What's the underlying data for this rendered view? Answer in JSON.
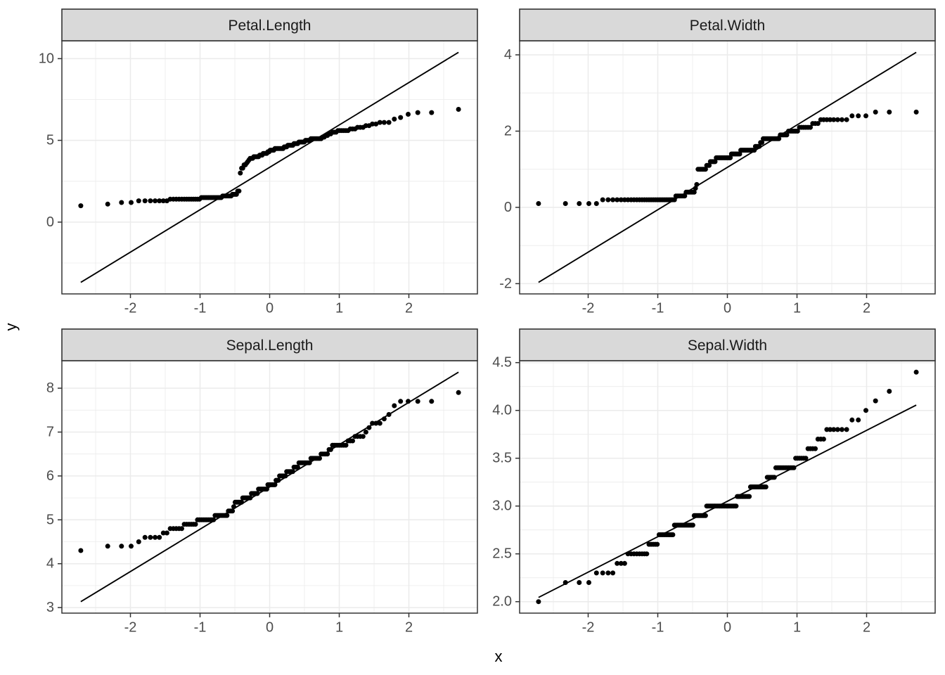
{
  "figure": {
    "title": "",
    "xlabel": "x",
    "ylabel": "y",
    "facet_labels": [
      "Petal.Length",
      "Petal.Width",
      "Sepal.Length",
      "Sepal.Width"
    ]
  },
  "style": {
    "background": "#ffffff",
    "panel_background": "#ffffff",
    "panel_border": "#333333",
    "grid_color": "#ebebeb",
    "strip_background": "#d9d9d9",
    "strip_text_color": "#1a1a1a",
    "axis_text_color": "#4d4d4d",
    "axis_title_color": "#000000",
    "tick_color": "#333333",
    "point_color": "#000000",
    "qq_line_color": "#000000"
  },
  "chart_data": {
    "type": "scatter",
    "subtype": "qq-plot",
    "title": "",
    "xlabel": "x",
    "ylabel": "y",
    "grid": "on",
    "legend": "none",
    "facet_layout": "2x2",
    "n_per_facet": 150,
    "x_definition": "theoretical standard-normal quantiles qnorm((i-0.5)/150), i=1..150, range -2.7132..2.7132",
    "x_range": [
      -2.9845,
      2.9845
    ],
    "x_ticks": [
      -2,
      -1,
      0,
      1,
      2
    ],
    "x_tick_labels": [
      "-2",
      "-1",
      "0",
      "1",
      "2"
    ],
    "x_minor": [
      -2.5,
      -1.5,
      -0.5,
      0.5,
      1.5,
      2.5
    ],
    "facets": [
      {
        "label": "Petal.Length",
        "row": 0,
        "col": 0,
        "n": 150,
        "y_range": [
          -4.394,
          11.094
        ],
        "y_ticks": [
          0,
          5,
          10
        ],
        "y_tick_labels": [
          "0",
          "5",
          "10"
        ],
        "y_minor": [
          -2.5,
          2.5,
          7.5
        ],
        "qq_line": {
          "x1": -2.7132,
          "y1": -3.69,
          "x2": 2.7132,
          "y2": 10.39,
          "slope": 2.5947,
          "intercept": 3.35
        },
        "sample_sorted_value_counts": [
          [
            1.0,
            1
          ],
          [
            1.1,
            1
          ],
          [
            1.2,
            2
          ],
          [
            1.3,
            7
          ],
          [
            1.4,
            13
          ],
          [
            1.5,
            13
          ],
          [
            1.6,
            7
          ],
          [
            1.7,
            4
          ],
          [
            1.9,
            2
          ],
          [
            3.0,
            1
          ],
          [
            3.3,
            2
          ],
          [
            3.5,
            2
          ],
          [
            3.6,
            1
          ],
          [
            3.7,
            1
          ],
          [
            3.8,
            1
          ],
          [
            3.9,
            3
          ],
          [
            4.0,
            5
          ],
          [
            4.1,
            3
          ],
          [
            4.2,
            4
          ],
          [
            4.3,
            2
          ],
          [
            4.4,
            4
          ],
          [
            4.5,
            8
          ],
          [
            4.6,
            3
          ],
          [
            4.7,
            5
          ],
          [
            4.8,
            4
          ],
          [
            4.9,
            5
          ],
          [
            5.0,
            4
          ],
          [
            5.1,
            8
          ],
          [
            5.2,
            2
          ],
          [
            5.3,
            2
          ],
          [
            5.4,
            2
          ],
          [
            5.5,
            3
          ],
          [
            5.6,
            6
          ],
          [
            5.7,
            3
          ],
          [
            5.8,
            3
          ],
          [
            5.9,
            2
          ],
          [
            6.0,
            2
          ],
          [
            6.1,
            3
          ],
          [
            6.3,
            1
          ],
          [
            6.4,
            1
          ],
          [
            6.6,
            1
          ],
          [
            6.7,
            2
          ],
          [
            6.9,
            1
          ]
        ]
      },
      {
        "label": "Petal.Width",
        "row": 0,
        "col": 1,
        "n": 150,
        "y_range": [
          -2.269,
          4.369
        ],
        "y_ticks": [
          -2,
          0,
          2,
          4
        ],
        "y_tick_labels": [
          "-2",
          "0",
          "2",
          "4"
        ],
        "y_minor": [
          -1,
          1,
          3
        ],
        "qq_line": {
          "x1": -2.7132,
          "y1": -1.967,
          "x2": 2.7132,
          "y2": 4.067,
          "slope": 1.112,
          "intercept": 1.05
        },
        "sample_sorted_value_counts": [
          [
            0.1,
            5
          ],
          [
            0.2,
            29
          ],
          [
            0.3,
            7
          ],
          [
            0.4,
            7
          ],
          [
            0.5,
            1
          ],
          [
            0.6,
            1
          ],
          [
            1.0,
            7
          ],
          [
            1.1,
            3
          ],
          [
            1.2,
            5
          ],
          [
            1.3,
            13
          ],
          [
            1.4,
            8
          ],
          [
            1.5,
            12
          ],
          [
            1.6,
            4
          ],
          [
            1.7,
            2
          ],
          [
            1.8,
            12
          ],
          [
            1.9,
            5
          ],
          [
            2.0,
            6
          ],
          [
            2.1,
            6
          ],
          [
            2.2,
            3
          ],
          [
            2.3,
            8
          ],
          [
            2.4,
            3
          ],
          [
            2.5,
            3
          ]
        ]
      },
      {
        "label": "Sepal.Length",
        "row": 1,
        "col": 0,
        "n": 150,
        "y_range": [
          2.874,
          8.626
        ],
        "y_ticks": [
          3,
          4,
          5,
          6,
          7,
          8
        ],
        "y_tick_labels": [
          "3",
          "4",
          "5",
          "6",
          "7",
          "8"
        ],
        "y_minor": [
          3.5,
          4.5,
          5.5,
          6.5,
          7.5
        ],
        "qq_line": {
          "x1": -2.7132,
          "y1": 3.135,
          "x2": 2.7132,
          "y2": 8.365,
          "slope": 0.9637,
          "intercept": 5.75
        },
        "sample_sorted_value_counts": [
          [
            4.3,
            1
          ],
          [
            4.4,
            3
          ],
          [
            4.5,
            1
          ],
          [
            4.6,
            4
          ],
          [
            4.7,
            2
          ],
          [
            4.8,
            5
          ],
          [
            4.9,
            6
          ],
          [
            5.0,
            10
          ],
          [
            5.1,
            9
          ],
          [
            5.2,
            4
          ],
          [
            5.3,
            1
          ],
          [
            5.4,
            6
          ],
          [
            5.5,
            7
          ],
          [
            5.6,
            6
          ],
          [
            5.7,
            8
          ],
          [
            5.8,
            7
          ],
          [
            5.9,
            3
          ],
          [
            6.0,
            6
          ],
          [
            6.1,
            6
          ],
          [
            6.2,
            4
          ],
          [
            6.3,
            9
          ],
          [
            6.4,
            7
          ],
          [
            6.5,
            5
          ],
          [
            6.6,
            2
          ],
          [
            6.7,
            8
          ],
          [
            6.8,
            3
          ],
          [
            6.9,
            4
          ],
          [
            7.0,
            1
          ],
          [
            7.1,
            1
          ],
          [
            7.2,
            3
          ],
          [
            7.3,
            1
          ],
          [
            7.4,
            1
          ],
          [
            7.6,
            1
          ],
          [
            7.7,
            4
          ],
          [
            7.9,
            1
          ]
        ]
      },
      {
        "label": "Sepal.Width",
        "row": 1,
        "col": 1,
        "n": 150,
        "y_range": [
          1.88,
          4.52
        ],
        "y_ticks": [
          2.0,
          2.5,
          3.0,
          3.5,
          4.0,
          4.5
        ],
        "y_tick_labels": [
          "2.0",
          "2.5",
          "3.0",
          "3.5",
          "4.0",
          "4.5"
        ],
        "y_minor": [
          2.25,
          2.75,
          3.25,
          3.75,
          4.25
        ],
        "qq_line": {
          "x1": -2.7132,
          "y1": 2.044,
          "x2": 2.7132,
          "y2": 4.056,
          "slope": 0.3707,
          "intercept": 3.05
        },
        "sample_sorted_value_counts": [
          [
            2.0,
            1
          ],
          [
            2.2,
            3
          ],
          [
            2.3,
            4
          ],
          [
            2.4,
            3
          ],
          [
            2.5,
            8
          ],
          [
            2.6,
            5
          ],
          [
            2.7,
            9
          ],
          [
            2.8,
            14
          ],
          [
            2.9,
            10
          ],
          [
            3.0,
            26
          ],
          [
            3.1,
            11
          ],
          [
            3.2,
            13
          ],
          [
            3.3,
            6
          ],
          [
            3.4,
            12
          ],
          [
            3.5,
            6
          ],
          [
            3.6,
            4
          ],
          [
            3.7,
            3
          ],
          [
            3.8,
            6
          ],
          [
            3.9,
            2
          ],
          [
            4.0,
            1
          ],
          [
            4.1,
            1
          ],
          [
            4.2,
            1
          ],
          [
            4.4,
            1
          ]
        ]
      }
    ]
  }
}
